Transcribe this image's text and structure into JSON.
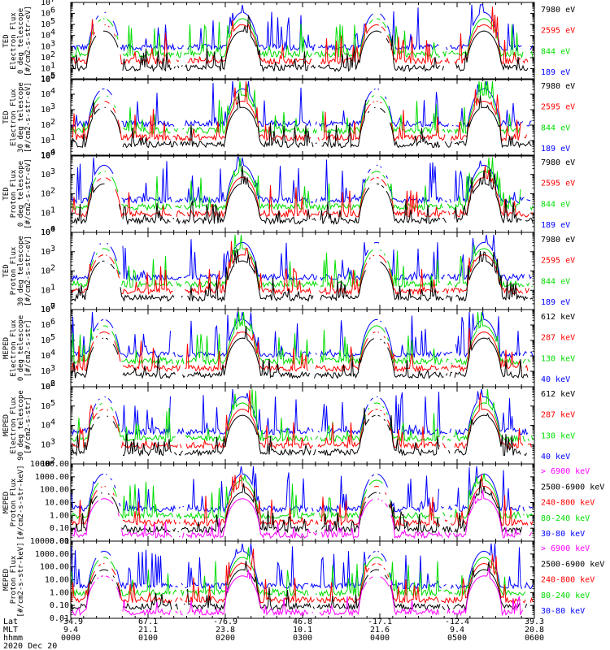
{
  "chart_data": [
    {
      "type": "line",
      "ylabel_lines": [
        "TED",
        "Electron Flux",
        "0 deg telescope",
        "[#/cm2-s-str-eV]"
      ],
      "scale": "log",
      "ytick_style": "exp",
      "ylim_exp": [
        0,
        7
      ],
      "legend": [
        {
          "label": "7980 eV",
          "color": "#000000"
        },
        {
          "label": "2595 eV",
          "color": "#ff0000"
        },
        {
          "label": "844 eV",
          "color": "#00dd00"
        },
        {
          "label": "189 eV",
          "color": "#0000ff"
        }
      ]
    },
    {
      "type": "line",
      "ylabel_lines": [
        "TED",
        "Electron Flux",
        "30 deg telescope",
        "[#/cm2-s-str-eV]"
      ],
      "scale": "log",
      "ytick_style": "exp",
      "ylim_exp": [
        0,
        5
      ],
      "legend": [
        {
          "label": "7980 eV",
          "color": "#000000"
        },
        {
          "label": "2595 eV",
          "color": "#ff0000"
        },
        {
          "label": "844 eV",
          "color": "#00dd00"
        },
        {
          "label": "189 eV",
          "color": "#0000ff"
        }
      ]
    },
    {
      "type": "line",
      "ylabel_lines": [
        "TED",
        "Proton Flux",
        "0 deg telescope",
        "[#/cm2-s-str-eV]"
      ],
      "scale": "log",
      "ytick_style": "exp",
      "ylim_exp": [
        0,
        4
      ],
      "legend": [
        {
          "label": "7980 eV",
          "color": "#000000"
        },
        {
          "label": "2595 eV",
          "color": "#ff0000"
        },
        {
          "label": "844 eV",
          "color": "#00dd00"
        },
        {
          "label": "189 eV",
          "color": "#0000ff"
        }
      ]
    },
    {
      "type": "line",
      "ylabel_lines": [
        "TED",
        "Proton Flux",
        "30 deg telescope",
        "[#/cm2-s-str-eV]"
      ],
      "scale": "log",
      "ytick_style": "exp",
      "ylim_exp": [
        0,
        4
      ],
      "legend": [
        {
          "label": "7980 eV",
          "color": "#000000"
        },
        {
          "label": "2595 eV",
          "color": "#ff0000"
        },
        {
          "label": "844 eV",
          "color": "#00dd00"
        },
        {
          "label": "189 eV",
          "color": "#0000ff"
        }
      ]
    },
    {
      "type": "line",
      "ylabel_lines": [
        "MEPED",
        "Electron Flux",
        "0 deg telescope",
        "[#/cm2-s-str]"
      ],
      "scale": "log",
      "ytick_style": "exp",
      "ylim_exp": [
        2,
        7
      ],
      "legend": [
        {
          "label": "612 keV",
          "color": "#000000"
        },
        {
          "label": "287 keV",
          "color": "#ff0000"
        },
        {
          "label": "130 keV",
          "color": "#00dd00"
        },
        {
          "label": "40 keV",
          "color": "#0000ff"
        }
      ]
    },
    {
      "type": "line",
      "ylabel_lines": [
        "MEPED",
        "Electron Flux",
        "90 deg telescope",
        "[#/cm2-s-str]"
      ],
      "scale": "log",
      "ytick_style": "exp",
      "ylim_exp": [
        2,
        6
      ],
      "legend": [
        {
          "label": "612 keV",
          "color": "#000000"
        },
        {
          "label": "287 keV",
          "color": "#ff0000"
        },
        {
          "label": "130 keV",
          "color": "#00dd00"
        },
        {
          "label": "40 keV",
          "color": "#0000ff"
        }
      ]
    },
    {
      "type": "line",
      "ylabel_lines": [
        "MEPED",
        "Proton Flux",
        "[#/cm2-s-str-keV]"
      ],
      "scale": "log",
      "ytick_style": "decimal",
      "ytick_labels": [
        "0.01",
        "0.10",
        "1.00",
        "10.00",
        "100.00",
        "1000.00",
        "10000.00"
      ],
      "ylim_exp": [
        -2,
        4
      ],
      "legend": [
        {
          "label": "> 6900 keV",
          "color": "#ff00ff"
        },
        {
          "label": "2500-6900 keV",
          "color": "#000000"
        },
        {
          "label": "240-800 keV",
          "color": "#ff0000"
        },
        {
          "label": "80-240 keV",
          "color": "#00dd00"
        },
        {
          "label": "30-80 keV",
          "color": "#0000ff"
        }
      ]
    },
    {
      "type": "line",
      "ylabel_lines": [
        "MEPED",
        "Proton Flux",
        "[#/cm2-s-str-keV]"
      ],
      "scale": "log",
      "ytick_style": "decimal",
      "ytick_labels": [
        "0.01",
        "0.10",
        "1.00",
        "10.00",
        "100.00",
        "1000.00",
        "10000.00"
      ],
      "ylim_exp": [
        -2,
        4
      ],
      "legend": [
        {
          "label": "> 6900 keV",
          "color": "#ff00ff"
        },
        {
          "label": "2500-6900 keV",
          "color": "#000000"
        },
        {
          "label": "240-800 keV",
          "color": "#ff0000"
        },
        {
          "label": "80-240 keV",
          "color": "#00dd00"
        },
        {
          "label": "30-80 keV",
          "color": "#0000ff"
        }
      ]
    }
  ],
  "xaxis": {
    "row_labels": [
      "Lat",
      "MLT",
      "hhmm"
    ],
    "date_label": "2020 Dec 20",
    "ticks": [
      {
        "lat": "-34.9",
        "mlt": "9.4",
        "hhmm": "0000"
      },
      {
        "lat": "67.1",
        "mlt": "21.1",
        "hhmm": "0100"
      },
      {
        "lat": "-76.9",
        "mlt": "23.8",
        "hhmm": "0200"
      },
      {
        "lat": "46.8",
        "mlt": "10.1",
        "hhmm": "0300"
      },
      {
        "lat": "-17.1",
        "mlt": "21.6",
        "hhmm": "0400"
      },
      {
        "lat": "-12.4",
        "mlt": "9.4",
        "hhmm": "0500"
      },
      {
        "lat": "39.3",
        "mlt": "20.8",
        "hhmm": "0600"
      }
    ]
  }
}
